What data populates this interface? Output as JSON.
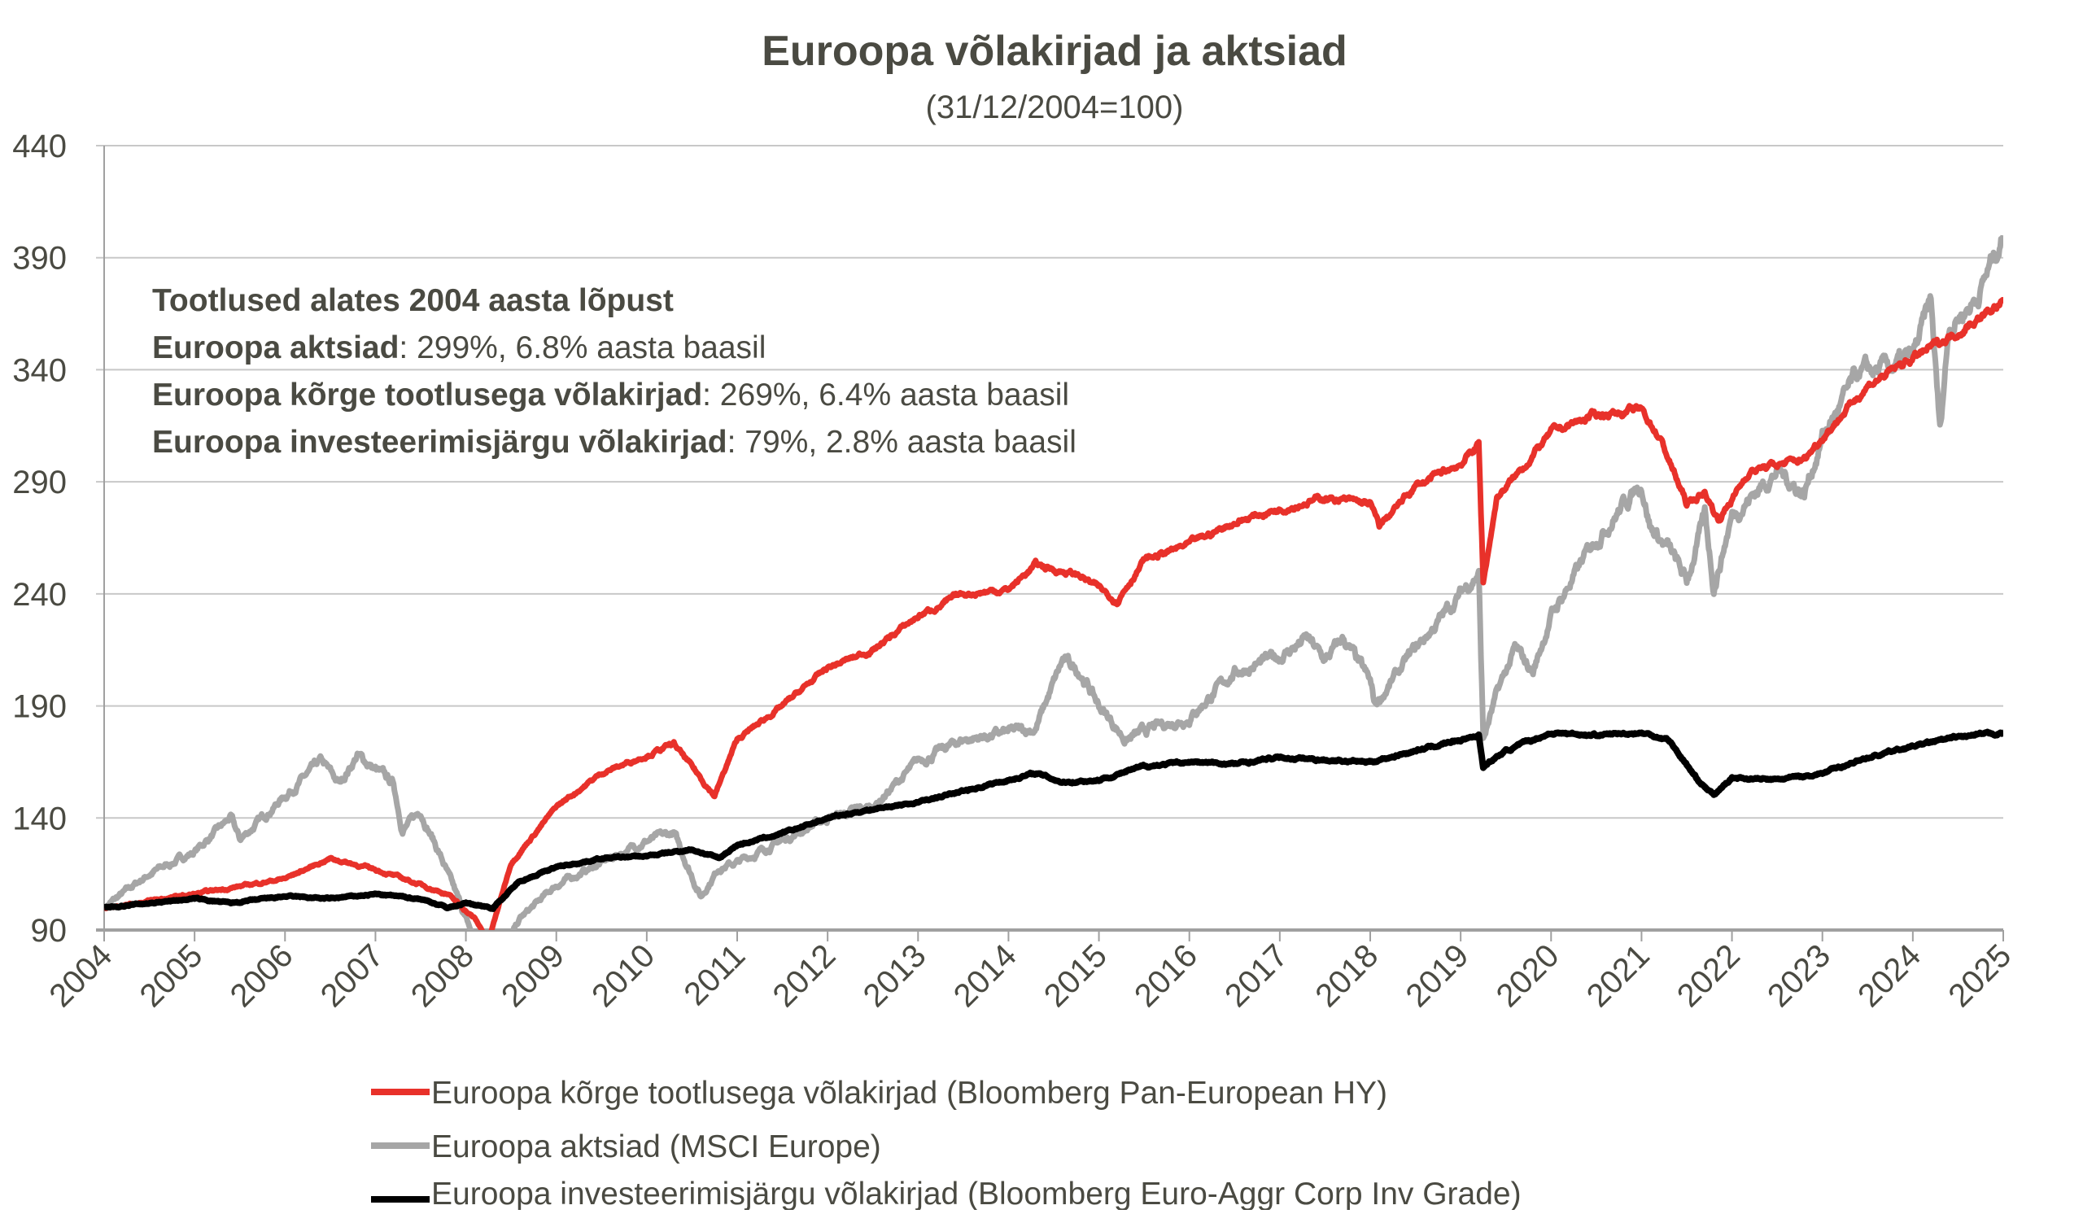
{
  "chart_data": {
    "type": "line",
    "title": "Euroopa võlakirjad ja aktsiad",
    "subtitle": "(31/12/2004=100)",
    "xlabel": "",
    "ylabel": "",
    "xlim": [
      2004,
      2025
    ],
    "ylim": [
      90,
      440
    ],
    "x_ticks": [
      "2004",
      "2005",
      "2006",
      "2007",
      "2008",
      "2009",
      "2010",
      "2011",
      "2012",
      "2013",
      "2014",
      "2015",
      "2016",
      "2017",
      "2018",
      "2019",
      "2020",
      "2021",
      "2022",
      "2023",
      "2024",
      "2025"
    ],
    "y_ticks": [
      90,
      140,
      190,
      240,
      290,
      340,
      390,
      440
    ],
    "grid": "horizontal",
    "legend_placement": "bottom",
    "annotation": {
      "heading": "Tootlused alates 2004 aasta lõpust",
      "lines": [
        {
          "label": "Euroopa aktsiad",
          "text": ": 299%, 6.8% aasta baasil"
        },
        {
          "label": "Euroopa kõrge tootlusega võlakirjad",
          "text": ": 269%, 6.4% aasta baasil"
        },
        {
          "label": "Euroopa investeerimisjärgu võlakirjad",
          "text": ": 79%, 2.8% aasta baasil"
        }
      ]
    },
    "series": [
      {
        "name": "Euroopa kõrge tootlusega võlakirjad (Bloomberg Pan-European HY)",
        "color": "#e8312a",
        "x": [
          2004,
          2005,
          2006,
          2006.5,
          2007,
          2007.3,
          2007.8,
          2008.1,
          2008.25,
          2008.5,
          2009,
          2009.5,
          2010,
          2010.3,
          2010.75,
          2011,
          2011.5,
          2012,
          2012.5,
          2013,
          2013.5,
          2014,
          2014.3,
          2014.8,
          2015.2,
          2015.5,
          2016,
          2016.5,
          2017,
          2017.5,
          2018,
          2018.1,
          2018.5,
          2019,
          2019.2,
          2019.25,
          2019.4,
          2019.6,
          2020,
          2020.5,
          2021,
          2021.2,
          2021.5,
          2021.7,
          2021.85,
          2022.2,
          2022.8,
          2023,
          2023.5,
          2024,
          2024.5,
          2025
        ],
        "y": [
          100,
          106,
          113,
          122,
          117,
          113,
          106,
          95,
          85,
          120,
          145,
          160,
          168,
          173,
          150,
          175,
          190,
          207,
          215,
          230,
          240,
          242,
          253,
          248,
          237,
          255,
          262,
          272,
          278,
          283,
          280,
          270,
          288,
          298,
          307,
          245,
          283,
          292,
          312,
          320,
          322,
          310,
          280,
          285,
          273,
          295,
          300,
          310,
          333,
          345,
          357,
          370
        ]
      },
      {
        "name": "Euroopa aktsiad (MSCI Europe)",
        "color": "#a6a6a6",
        "x": [
          2004,
          2004.5,
          2005,
          2005.4,
          2005.5,
          2006,
          2006.4,
          2006.6,
          2006.8,
          2007.2,
          2007.3,
          2007.5,
          2007.7,
          2007.8,
          2008,
          2008.1,
          2008.4,
          2008.6,
          2009,
          2009.5,
          2010,
          2010.3,
          2010.6,
          2010.8,
          2011,
          2011.5,
          2012,
          2012.5,
          2013,
          2013.5,
          2014,
          2014.3,
          2014.6,
          2014.8,
          2015,
          2015.3,
          2015.6,
          2016,
          2016.5,
          2017,
          2017.3,
          2017.5,
          2017.7,
          2018,
          2018.05,
          2018.4,
          2018.8,
          2019,
          2019.2,
          2019.25,
          2019.4,
          2019.6,
          2019.8,
          2020,
          2020.5,
          2020.8,
          2021,
          2021.1,
          2021.3,
          2021.5,
          2021.7,
          2021.8,
          2022,
          2022.5,
          2022.8,
          2023,
          2023.4,
          2023.7,
          2024,
          2024.2,
          2024.3,
          2024.4,
          2024.7,
          2025
        ],
        "y": [
          100,
          115,
          125,
          140,
          130,
          150,
          165,
          155,
          168,
          155,
          135,
          143,
          125,
          115,
          95,
          85,
          80,
          95,
          110,
          120,
          130,
          133,
          105,
          118,
          120,
          130,
          140,
          145,
          165,
          175,
          178,
          180,
          210,
          205,
          190,
          175,
          180,
          185,
          205,
          212,
          220,
          210,
          220,
          200,
          190,
          210,
          230,
          240,
          250,
          175,
          195,
          215,
          205,
          230,
          265,
          280,
          290,
          270,
          260,
          245,
          275,
          243,
          275,
          295,
          285,
          310,
          338,
          340,
          345,
          370,
          312,
          360,
          372,
          400
        ]
      },
      {
        "name": "Euroopa investeerimisjärgu võlakirjad (Bloomberg Euro-Aggr Corp Inv Grade)",
        "color": "#000000",
        "x": [
          2004,
          2005,
          2005.4,
          2006,
          2006.5,
          2007,
          2007.5,
          2007.8,
          2008,
          2008.3,
          2008.6,
          2009,
          2009.5,
          2010,
          2010.5,
          2010.8,
          2011,
          2011.5,
          2012,
          2012.5,
          2013,
          2013.5,
          2014,
          2014.3,
          2014.6,
          2015,
          2015.5,
          2016,
          2016.5,
          2017,
          2017.5,
          2018,
          2018.5,
          2019,
          2019.2,
          2019.25,
          2019.5,
          2020,
          2020.5,
          2021,
          2021.3,
          2021.6,
          2021.8,
          2022,
          2022.5,
          2023,
          2023.5,
          2024,
          2024.5,
          2025
        ],
        "y": [
          100,
          104,
          102,
          105,
          104,
          106,
          104,
          100,
          102,
          100,
          112,
          118,
          122,
          123,
          126,
          122,
          128,
          133,
          140,
          144,
          147,
          152,
          157,
          160,
          156,
          157,
          163,
          165,
          164,
          167,
          166,
          165,
          170,
          175,
          177,
          163,
          170,
          178,
          177,
          178,
          175,
          158,
          150,
          158,
          157,
          160,
          167,
          172,
          176,
          178
        ]
      }
    ]
  }
}
